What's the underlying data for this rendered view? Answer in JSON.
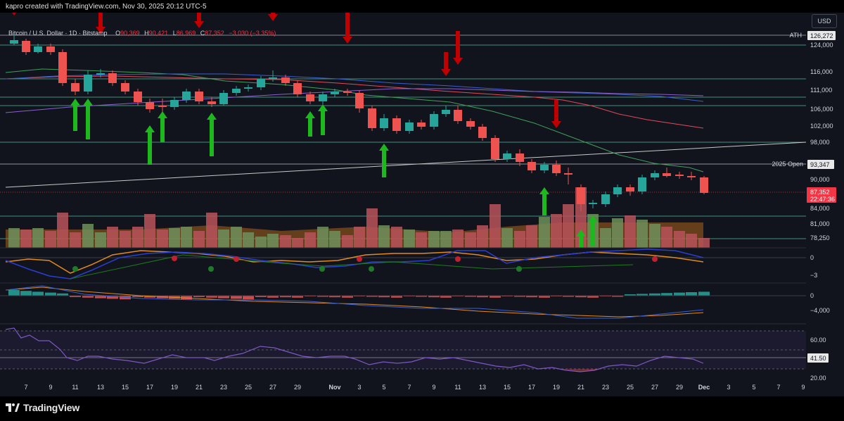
{
  "header": {
    "created_by": "kapro created with TradingView.com, Nov 30, 2025 20:12 UTC-5",
    "currency_button": "USD"
  },
  "legend": {
    "symbol": "Bitcoin / U.S. Dollar · 1D · Bitstamp",
    "open_label": "O",
    "open_value": "90,369",
    "high_label": "H",
    "high_value": "90,421",
    "low_label": "L",
    "low_value": "86,969",
    "close_label": "C",
    "close_value": "87,352",
    "change": "−3,030 (−3.35%)"
  },
  "price_axis": {
    "ticks": [
      "124,000",
      "116,000",
      "111,000",
      "106,000",
      "102,000",
      "98,000",
      "90,000",
      "84,000",
      "81,000",
      "78,250"
    ],
    "ath_label": "ATH",
    "ath_value": "126,272",
    "open2025_label": "2025 Open",
    "open2025_value": "93,347",
    "last_price": "87,352",
    "countdown": "22:47:36"
  },
  "osc1_axis": {
    "ticks": [
      "0",
      "−3"
    ]
  },
  "macd_axis": {
    "ticks": [
      "0",
      "−4,000"
    ]
  },
  "rsi_axis": {
    "ticks": [
      "60.00",
      "20.00"
    ],
    "current": "41.50"
  },
  "time_axis": {
    "labels": [
      "7",
      "9",
      "11",
      "13",
      "15",
      "17",
      "19",
      "21",
      "23",
      "25",
      "27",
      "29",
      "Nov",
      "3",
      "5",
      "7",
      "9",
      "11",
      "13",
      "15",
      "17",
      "19",
      "21",
      "23",
      "25",
      "27",
      "29",
      "Dec",
      "3",
      "5",
      "7",
      "9"
    ]
  },
  "branding": {
    "name": "TradingView"
  },
  "colors": {
    "up": "#26a69a",
    "down": "#ef5350",
    "background": "#12141d",
    "sell_arrow": "#c00000",
    "buy_arrow": "#1db81d"
  }
}
